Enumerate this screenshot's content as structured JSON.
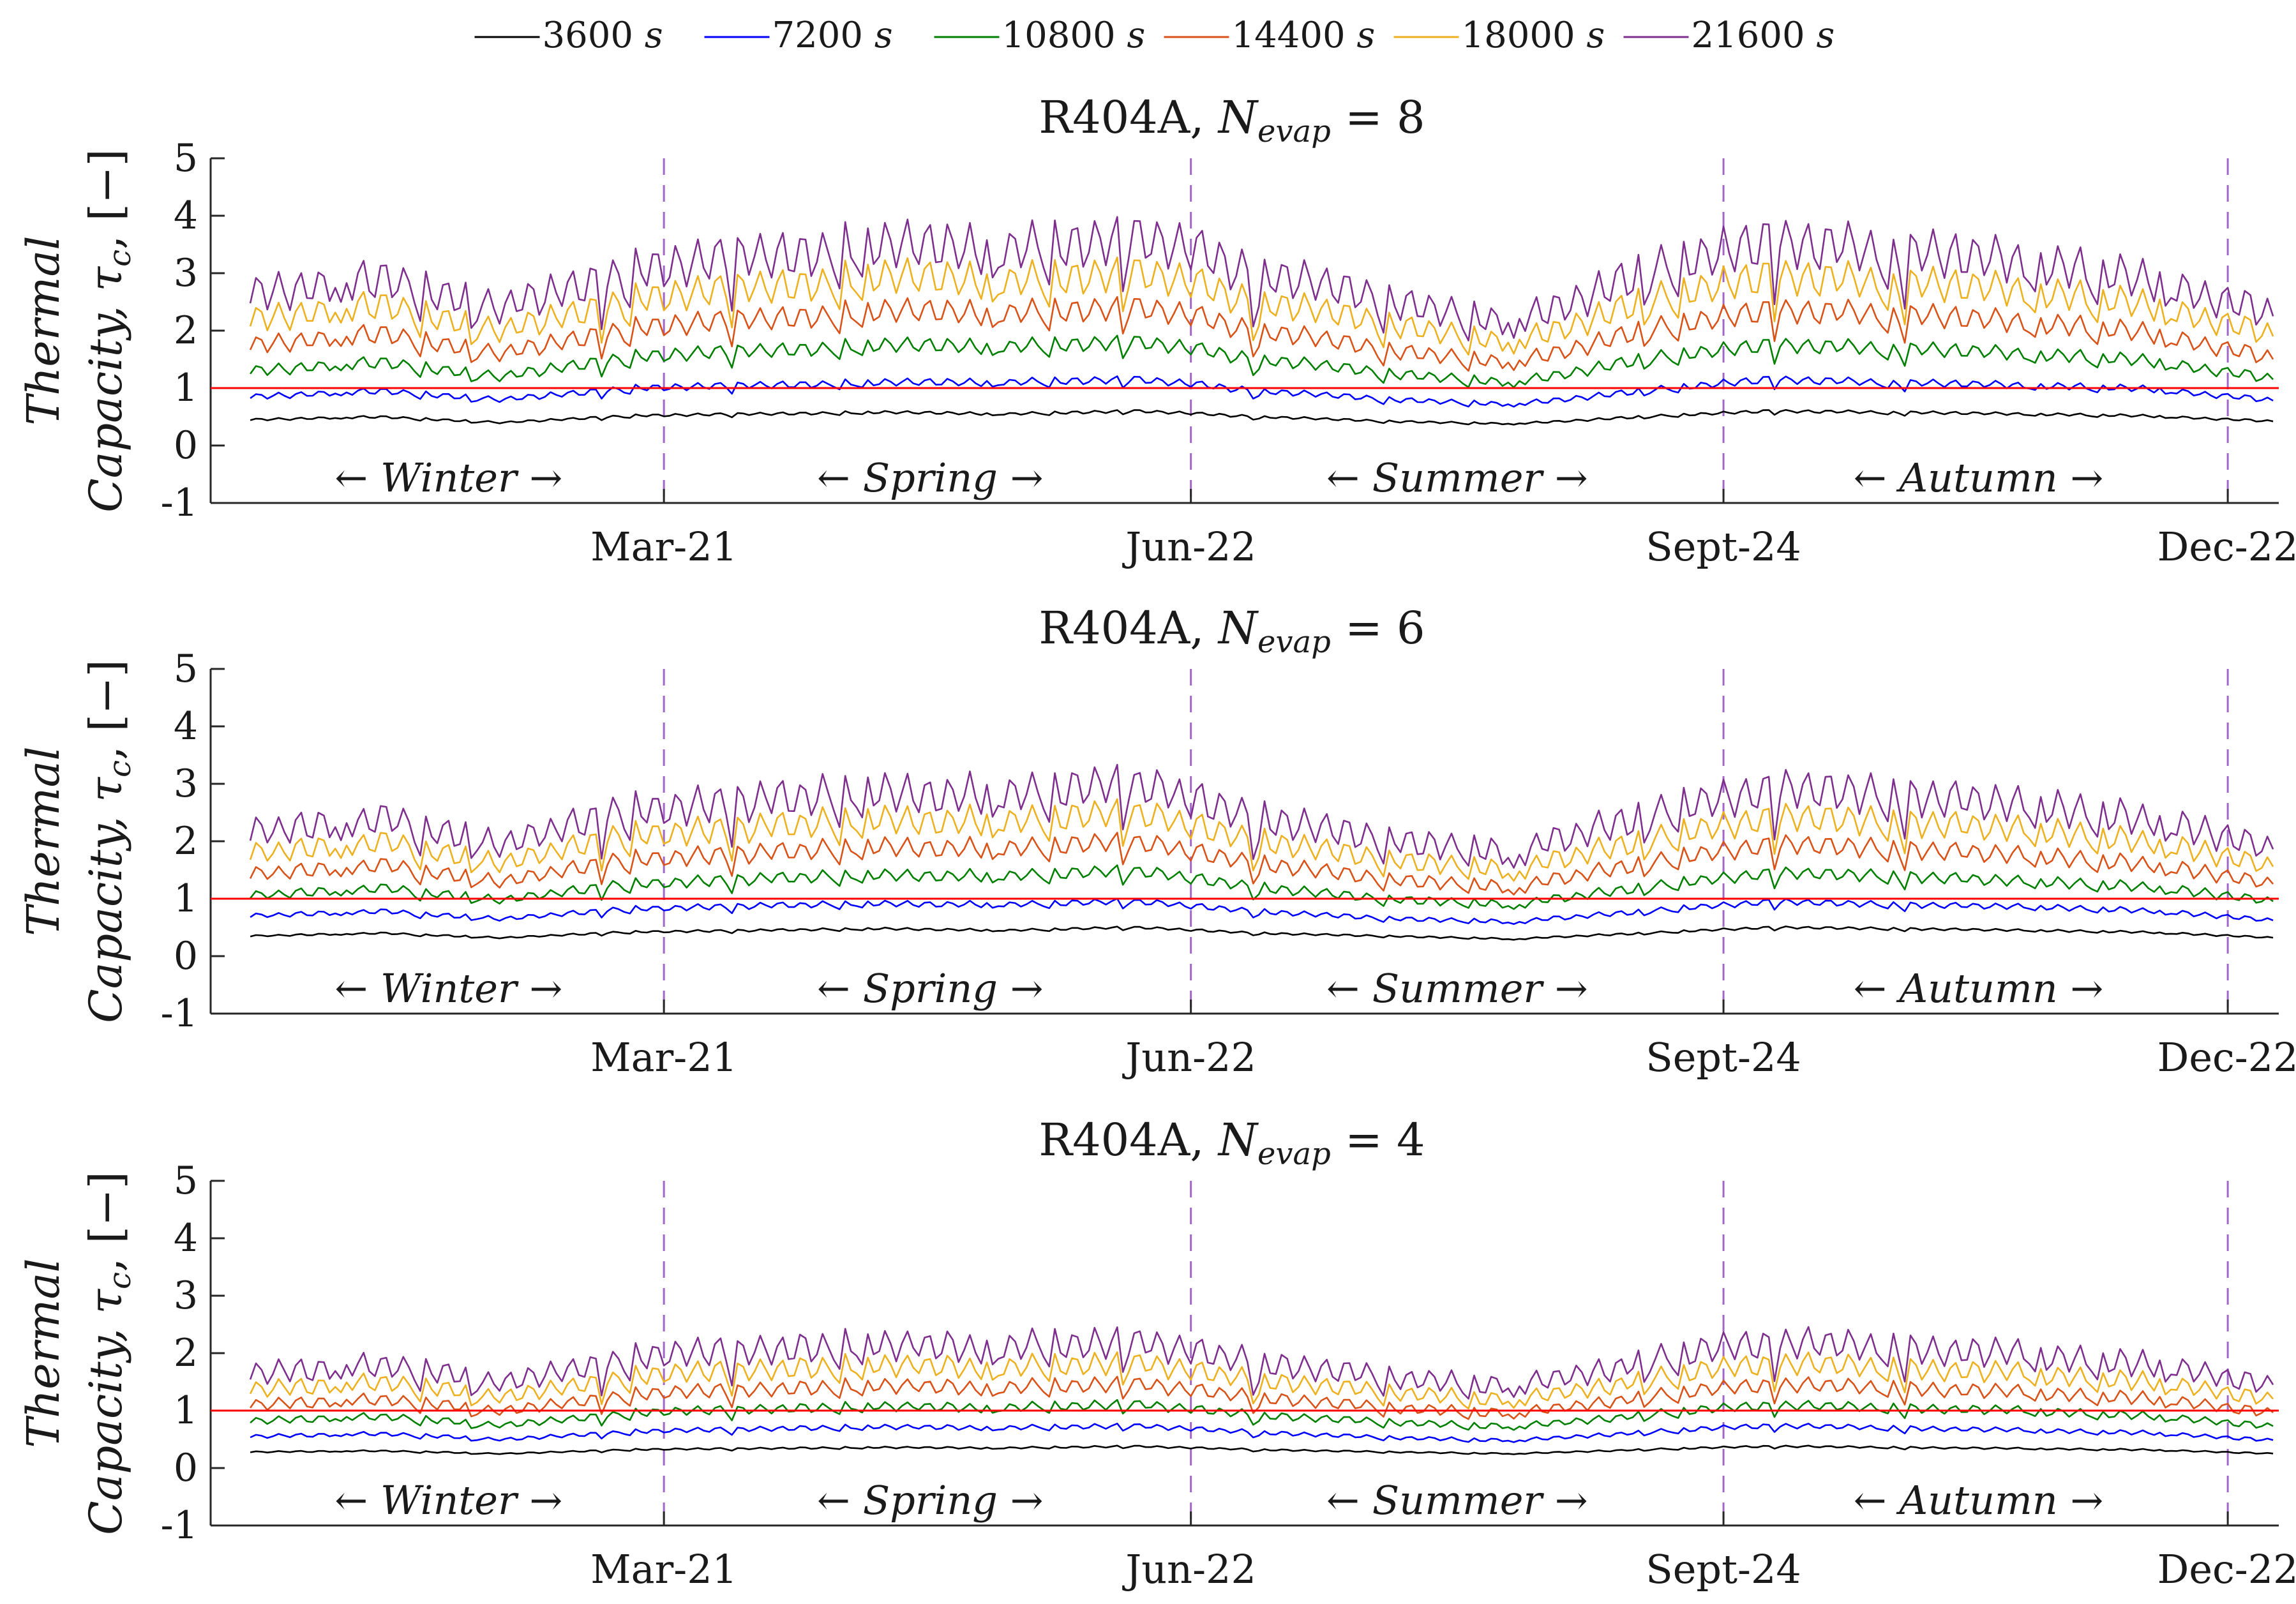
{
  "figure": {
    "legend": {
      "unit": "s",
      "entries": [
        {
          "label": "3600",
          "color": "#000000"
        },
        {
          "label": "7200",
          "color": "#0000ff"
        },
        {
          "label": "10800",
          "color": "#008000"
        },
        {
          "label": "14400",
          "color": "#d95319"
        },
        {
          "label": "18000",
          "color": "#edb120"
        },
        {
          "label": "21600",
          "color": "#7e2f8e"
        }
      ]
    },
    "ylabel_line1": "Thermal",
    "ylabel_line2": "Capacity,",
    "ylabel_symbol": "τ",
    "ylabel_sub": "c",
    "ylabel_unit": ", [−]"
  },
  "chart_data": [
    {
      "type": "line",
      "title_prefix": "R404A, ",
      "title_symbol": "N",
      "title_sub": "evap",
      "title_suffix": " = 8",
      "ylim": [
        -1,
        5
      ],
      "yticks": [
        "-1",
        "0",
        "1",
        "2",
        "3",
        "4",
        "5"
      ],
      "xlim": [
        0,
        365
      ],
      "xtick_labels": [
        "Mar-21",
        "Jun-22",
        "Sept-24",
        "Dec-22"
      ],
      "xtick_days": [
        80,
        173,
        267,
        356
      ],
      "season_labels": [
        "← Winter →",
        "← Spring →",
        "← Summer →",
        "← Autumn →"
      ],
      "season_centers": [
        42,
        127,
        220,
        312
      ],
      "reference_line": {
        "y": 1,
        "color": "#ff0000"
      },
      "divider_color": "#a066c8",
      "series": [
        {
          "name": "3600 s",
          "color": "#000000",
          "values": [
            0.45,
            0.5,
            0.4,
            0.52,
            0.55,
            0.58,
            0.55,
            0.6,
            0.5,
            0.42,
            0.38,
            0.5,
            0.6,
            0.58,
            0.55,
            0.52,
            0.42
          ]
        },
        {
          "name": "7200 s",
          "color": "#0000ff",
          "values": [
            0.85,
            0.95,
            0.8,
            1.0,
            1.05,
            1.1,
            1.1,
            1.15,
            0.95,
            0.8,
            0.72,
            0.95,
            1.15,
            1.1,
            1.05,
            1.0,
            0.78
          ]
        },
        {
          "name": "10800 s",
          "color": "#008000",
          "values": [
            1.3,
            1.45,
            1.2,
            1.55,
            1.65,
            1.75,
            1.72,
            1.8,
            1.5,
            1.25,
            1.1,
            1.5,
            1.75,
            1.7,
            1.6,
            1.5,
            1.15
          ]
        },
        {
          "name": "14400 s",
          "color": "#d95319",
          "values": [
            1.75,
            1.95,
            1.6,
            2.05,
            2.2,
            2.35,
            2.3,
            2.4,
            2.0,
            1.65,
            1.45,
            2.0,
            2.35,
            2.3,
            2.15,
            2.0,
            1.5
          ]
        },
        {
          "name": "18000 s",
          "color": "#edb120",
          "values": [
            2.2,
            2.45,
            2.0,
            2.55,
            2.75,
            2.95,
            2.85,
            3.0,
            2.5,
            2.1,
            1.8,
            2.5,
            2.95,
            2.85,
            2.7,
            2.5,
            1.9
          ]
        },
        {
          "name": "21600 s",
          "color": "#7e2f8e",
          "values": [
            2.65,
            2.9,
            2.4,
            3.05,
            3.3,
            3.5,
            3.4,
            3.6,
            3.0,
            2.5,
            2.15,
            3.0,
            3.55,
            3.4,
            3.2,
            2.95,
            2.25
          ]
        }
      ]
    },
    {
      "type": "line",
      "title_prefix": "R404A, ",
      "title_symbol": "N",
      "title_sub": "evap",
      "title_suffix": " = 6",
      "ylim": [
        -1,
        5
      ],
      "yticks": [
        "-1",
        "0",
        "1",
        "2",
        "3",
        "4",
        "5"
      ],
      "xlim": [
        0,
        365
      ],
      "xtick_labels": [
        "Mar-21",
        "Jun-22",
        "Sept-24",
        "Dec-22"
      ],
      "xtick_days": [
        80,
        173,
        267,
        356
      ],
      "season_labels": [
        "← Winter →",
        "← Spring →",
        "← Summer →",
        "← Autumn →"
      ],
      "season_centers": [
        42,
        127,
        220,
        312
      ],
      "reference_line": {
        "y": 1,
        "color": "#ff0000"
      },
      "divider_color": "#a066c8",
      "series": [
        {
          "name": "3600 s",
          "color": "#000000",
          "values": [
            0.35,
            0.4,
            0.32,
            0.42,
            0.45,
            0.48,
            0.45,
            0.5,
            0.4,
            0.35,
            0.3,
            0.4,
            0.5,
            0.48,
            0.45,
            0.42,
            0.32
          ]
        },
        {
          "name": "7200 s",
          "color": "#0000ff",
          "values": [
            0.7,
            0.78,
            0.65,
            0.82,
            0.88,
            0.92,
            0.9,
            0.95,
            0.78,
            0.66,
            0.6,
            0.78,
            0.95,
            0.9,
            0.86,
            0.8,
            0.62
          ]
        },
        {
          "name": "10800 s",
          "color": "#008000",
          "values": [
            1.05,
            1.18,
            0.98,
            1.25,
            1.35,
            1.42,
            1.4,
            1.48,
            1.2,
            1.0,
            0.9,
            1.2,
            1.45,
            1.4,
            1.3,
            1.22,
            0.95
          ]
        },
        {
          "name": "14400 s",
          "color": "#d95319",
          "values": [
            1.42,
            1.58,
            1.3,
            1.68,
            1.8,
            1.92,
            1.88,
            1.98,
            1.62,
            1.35,
            1.2,
            1.62,
            1.95,
            1.88,
            1.75,
            1.62,
            1.25
          ]
        },
        {
          "name": "18000 s",
          "color": "#edb120",
          "values": [
            1.78,
            1.98,
            1.62,
            2.1,
            2.25,
            2.4,
            2.35,
            2.48,
            2.02,
            1.7,
            1.5,
            2.02,
            2.42,
            2.35,
            2.2,
            2.02,
            1.55
          ]
        },
        {
          "name": "21600 s",
          "color": "#7e2f8e",
          "values": [
            2.15,
            2.38,
            1.95,
            2.52,
            2.72,
            2.88,
            2.82,
            2.98,
            2.42,
            2.05,
            1.8,
            2.45,
            2.92,
            2.82,
            2.62,
            2.42,
            1.85
          ]
        }
      ]
    },
    {
      "type": "line",
      "title_prefix": "R404A, ",
      "title_symbol": "N",
      "title_sub": "evap",
      "title_suffix": " = 4",
      "ylim": [
        -1,
        5
      ],
      "yticks": [
        "-1",
        "0",
        "1",
        "2",
        "3",
        "4",
        "5"
      ],
      "xlim": [
        0,
        365
      ],
      "xtick_labels": [
        "Mar-21",
        "Jun-22",
        "Sept-24",
        "Dec-22"
      ],
      "xtick_days": [
        80,
        173,
        267,
        356
      ],
      "season_labels": [
        "← Winter →",
        "← Spring →",
        "← Summer →",
        "← Autumn →"
      ],
      "season_centers": [
        42,
        127,
        220,
        312
      ],
      "reference_line": {
        "y": 1,
        "color": "#ff0000"
      },
      "divider_color": "#a066c8",
      "series": [
        {
          "name": "3600 s",
          "color": "#000000",
          "values": [
            0.28,
            0.3,
            0.25,
            0.32,
            0.34,
            0.36,
            0.35,
            0.38,
            0.32,
            0.28,
            0.25,
            0.32,
            0.38,
            0.36,
            0.34,
            0.32,
            0.25
          ]
        },
        {
          "name": "7200 s",
          "color": "#0000ff",
          "values": [
            0.55,
            0.6,
            0.5,
            0.63,
            0.68,
            0.72,
            0.7,
            0.74,
            0.62,
            0.53,
            0.48,
            0.62,
            0.74,
            0.7,
            0.66,
            0.62,
            0.48
          ]
        },
        {
          "name": "10800 s",
          "color": "#008000",
          "values": [
            0.82,
            0.9,
            0.75,
            0.95,
            1.02,
            1.08,
            1.05,
            1.12,
            0.92,
            0.8,
            0.72,
            0.92,
            1.1,
            1.05,
            1.0,
            0.92,
            0.72
          ]
        },
        {
          "name": "14400 s",
          "color": "#d95319",
          "values": [
            1.1,
            1.2,
            1.0,
            1.27,
            1.36,
            1.44,
            1.4,
            1.48,
            1.23,
            1.05,
            0.95,
            1.23,
            1.46,
            1.4,
            1.32,
            1.23,
            0.95
          ]
        },
        {
          "name": "18000 s",
          "color": "#edb120",
          "values": [
            1.37,
            1.5,
            1.25,
            1.58,
            1.7,
            1.8,
            1.75,
            1.85,
            1.53,
            1.32,
            1.18,
            1.53,
            1.83,
            1.75,
            1.65,
            1.53,
            1.18
          ]
        },
        {
          "name": "21600 s",
          "color": "#7e2f8e",
          "values": [
            1.65,
            1.8,
            1.5,
            1.9,
            2.04,
            2.16,
            2.1,
            2.22,
            1.84,
            1.58,
            1.42,
            1.84,
            2.2,
            2.1,
            1.98,
            1.84,
            1.42
          ]
        }
      ]
    }
  ]
}
